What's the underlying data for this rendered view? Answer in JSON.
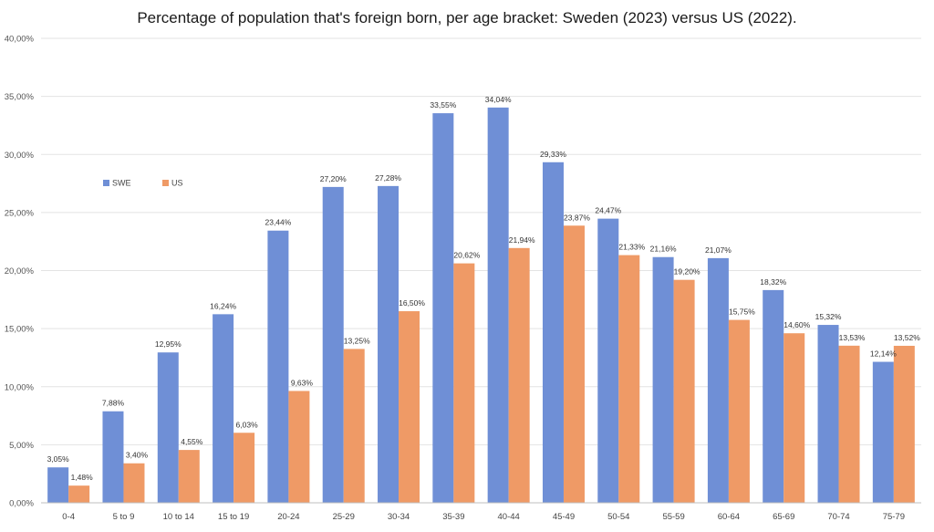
{
  "chart_data": {
    "type": "bar",
    "title": "Percentage of population that's foreign born, per age bracket: Sweden (2023) versus US (2022).",
    "xlabel": "",
    "ylabel": "",
    "ylim": [
      0,
      40
    ],
    "yticks": [
      "0,00%",
      "5,00%",
      "10,00%",
      "15,00%",
      "20,00%",
      "25,00%",
      "30,00%",
      "35,00%",
      "40,00%"
    ],
    "grid": true,
    "legend_position": "left",
    "categories": [
      "0-4",
      "5 to 9",
      "10 to 14",
      "15 to 19",
      "20-24",
      "25-29",
      "30-34",
      "35-39",
      "40-44",
      "45-49",
      "50-54",
      "55-59",
      "60-64",
      "65-69",
      "70-74",
      "75-79"
    ],
    "series": [
      {
        "name": "SWE",
        "color": "#6f8fd6",
        "values": [
          3.05,
          7.88,
          12.95,
          16.24,
          23.44,
          27.2,
          27.28,
          33.55,
          34.04,
          29.33,
          24.47,
          21.16,
          21.07,
          18.32,
          15.32,
          12.14
        ],
        "labels": [
          "3,05%",
          "7,88%",
          "12,95%",
          "16,24%",
          "23,44%",
          "27,20%",
          "27,28%",
          "33,55%",
          "34,04%",
          "29,33%",
          "24,47%",
          "21,16%",
          "21,07%",
          "18,32%",
          "15,32%",
          "12,14%"
        ]
      },
      {
        "name": "US",
        "color": "#ef9a66",
        "values": [
          1.48,
          3.4,
          4.55,
          6.03,
          9.63,
          13.25,
          16.5,
          20.62,
          21.94,
          23.87,
          21.33,
          19.2,
          15.75,
          14.6,
          13.53,
          13.52
        ],
        "labels": [
          "1,48%",
          "3,40%",
          "4,55%",
          "6,03%",
          "9,63%",
          "13,25%",
          "16,50%",
          "20,62%",
          "21,94%",
          "23,87%",
          "21,33%",
          "19,20%",
          "15,75%",
          "14,60%",
          "13,53%",
          "13,52%"
        ]
      }
    ]
  }
}
